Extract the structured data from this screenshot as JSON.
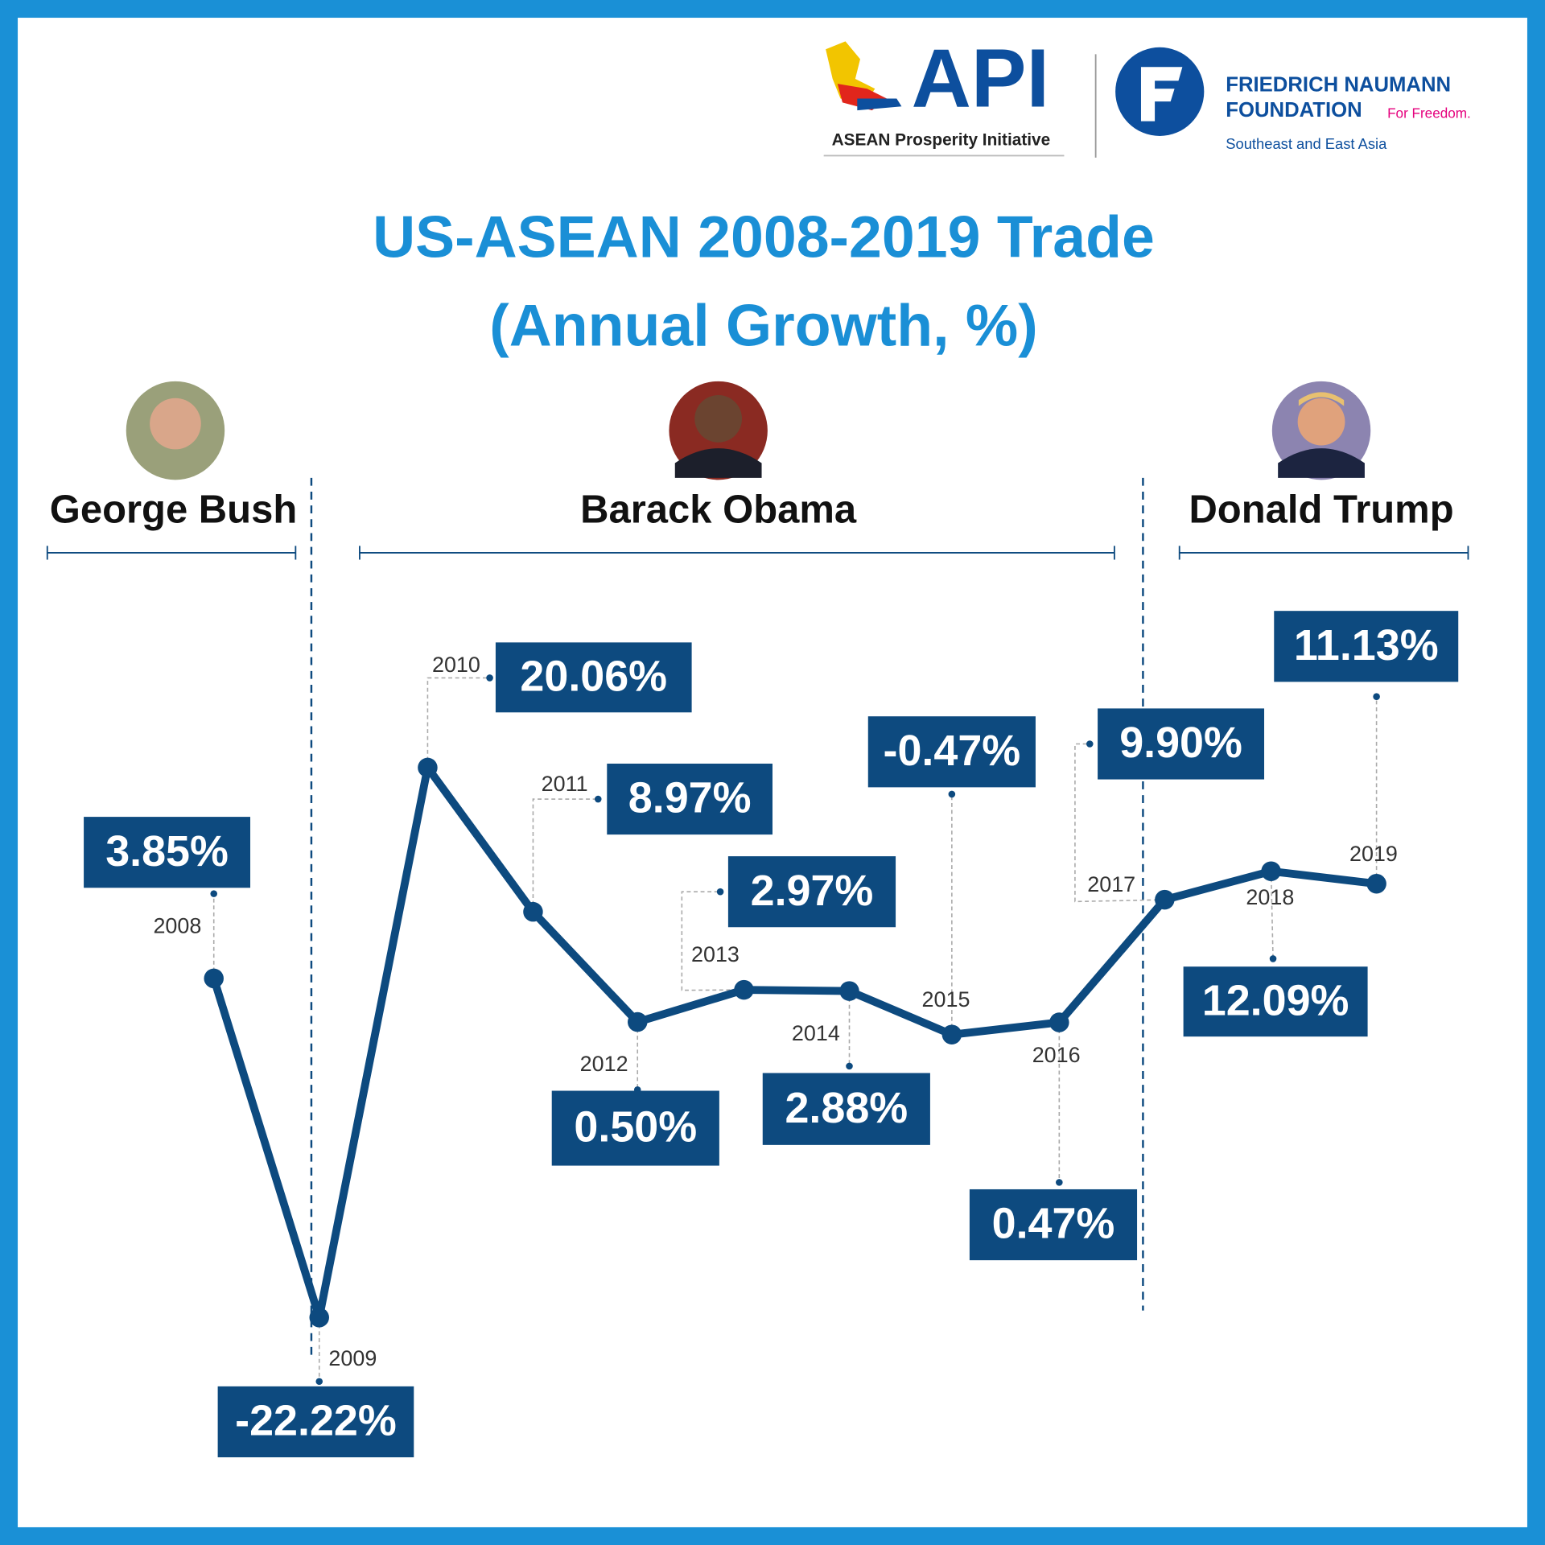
{
  "logos": {
    "api": {
      "name": "API",
      "tagline": "ASEAN Prosperity Initiative"
    },
    "fnf": {
      "line1": "FRIEDRICH NAUMANN",
      "line2": "FOUNDATION",
      "slogan": "For Freedom.",
      "region": "Southeast and East Asia"
    }
  },
  "presidents": [
    {
      "name": "George Bush"
    },
    {
      "name": "Barack Obama"
    },
    {
      "name": "Donald Trump"
    }
  ],
  "chart_data": {
    "type": "line",
    "title": "US-ASEAN 2008-2019 Trade",
    "subtitle": "(Annual Growth, %)",
    "categories": [
      "2008",
      "2009",
      "2010",
      "2011",
      "2012",
      "2013",
      "2014",
      "2015",
      "2016",
      "2017",
      "2018",
      "2019"
    ],
    "values": [
      3.85,
      -22.22,
      20.06,
      8.97,
      0.5,
      2.97,
      2.88,
      -0.47,
      0.47,
      9.9,
      12.09,
      11.13
    ],
    "value_labels": [
      "3.85%",
      "-22.22%",
      "20.06%",
      "8.97%",
      "0.50%",
      "2.97%",
      "2.88%",
      "-0.47%",
      "0.47%",
      "9.90%",
      "12.09%",
      "11.13%"
    ],
    "color": "#0d4a7f"
  }
}
